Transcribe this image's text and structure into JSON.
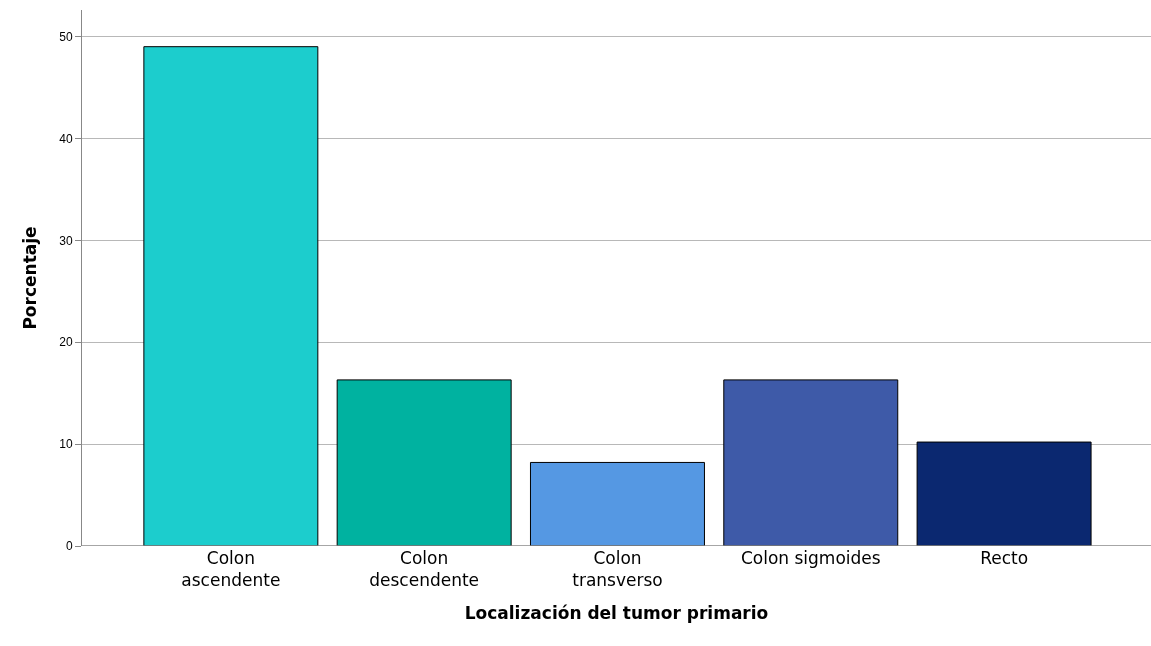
{
  "chart_data": {
    "type": "bar",
    "xlabel": "Localización del tumor primario",
    "ylabel": "Porcentaje",
    "categories": [
      "Colon ascendente",
      "Colon descendente",
      "Colon transverso",
      "Colon sigmoides",
      "Recto"
    ],
    "values": [
      49.0,
      16.3,
      8.2,
      16.3,
      10.2
    ],
    "colors": [
      "#1ccdcd",
      "#00b2a0",
      "#5598e3",
      "#3e5aa8",
      "#0b2870"
    ],
    "ylim": [
      0,
      52.6
    ],
    "yticks": [
      0,
      10,
      20,
      30,
      40,
      50
    ],
    "grid": "y"
  }
}
